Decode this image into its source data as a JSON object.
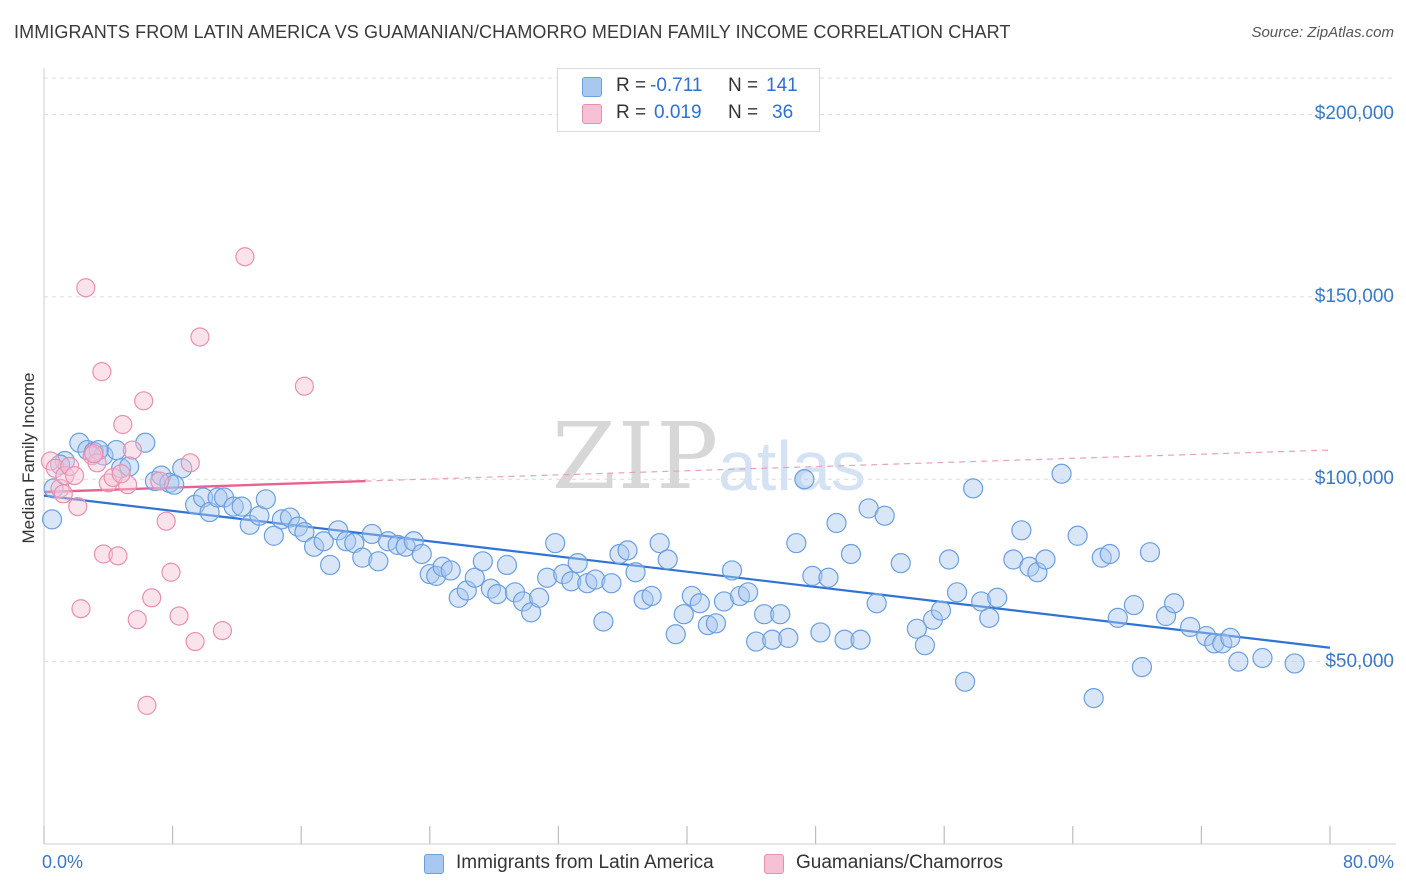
{
  "title": "IMMIGRANTS FROM LATIN AMERICA VS GUAMANIAN/CHAMORRO MEDIAN FAMILY INCOME CORRELATION CHART",
  "source": "Source: ZipAtlas.com",
  "watermark": {
    "zip": "ZIP",
    "atlas": "atlas"
  },
  "stats": [
    {
      "r_label": "R = ",
      "r_value": "-0.711",
      "n_label": "N = ",
      "n_value": "141",
      "color": "#a9c8f0",
      "border": "#6b9fe0"
    },
    {
      "r_label": "R = ",
      "r_value": "0.019",
      "n_label": "N = ",
      "n_value": "36",
      "color": "#f6c1d4",
      "border": "#e890ae"
    }
  ],
  "legend": [
    {
      "label": "Immigrants from Latin America",
      "color": "#a9c8f0",
      "border": "#6b9fe0"
    },
    {
      "label": "Guamanians/Chamorros",
      "color": "#f6c1d4",
      "border": "#e890ae"
    }
  ],
  "chart_data": {
    "type": "scatter",
    "title": "IMMIGRANTS FROM LATIN AMERICA VS GUAMANIAN/CHAMORRO MEDIAN FAMILY INCOME CORRELATION CHART",
    "xlabel": "",
    "ylabel": "Median Family Income",
    "xlim": [
      0,
      80
    ],
    "ylim": [
      0,
      210000
    ],
    "x_tick_labels": [
      "0.0%",
      "80.0%"
    ],
    "y_ticks": [
      50000,
      100000,
      150000,
      200000
    ],
    "y_tick_labels": [
      "$50,000",
      "$100,000",
      "$150,000",
      "$200,000"
    ],
    "grid": "horizontal dashed",
    "legend_position": "bottom-center",
    "series": [
      {
        "name": "Immigrants from Latin America",
        "color": "#6b9fe0",
        "trend": {
          "x": [
            0,
            80
          ],
          "y": [
            95500,
            53800
          ],
          "style": "solid"
        },
        "points": [
          [
            0.5,
            89000
          ],
          [
            0.6,
            97500
          ],
          [
            1.3,
            105000
          ],
          [
            2.2,
            110000
          ],
          [
            2.7,
            108000
          ],
          [
            3.1,
            107500
          ],
          [
            3.7,
            106500
          ],
          [
            4.5,
            108000
          ],
          [
            4.8,
            103000
          ],
          [
            6.3,
            110000
          ],
          [
            6.9,
            99500
          ],
          [
            7.3,
            101000
          ],
          [
            7.8,
            99000
          ],
          [
            8.6,
            103000
          ],
          [
            9.4,
            93000
          ],
          [
            9.9,
            95000
          ],
          [
            10.3,
            91000
          ],
          [
            10.8,
            95000
          ],
          [
            11.2,
            95000
          ],
          [
            11.8,
            92500
          ],
          [
            12.3,
            92500
          ],
          [
            12.8,
            87500
          ],
          [
            13.4,
            90000
          ],
          [
            13.8,
            94500
          ],
          [
            14.3,
            84500
          ],
          [
            14.8,
            89000
          ],
          [
            15.3,
            89500
          ],
          [
            15.8,
            87000
          ],
          [
            16.2,
            85500
          ],
          [
            16.8,
            81500
          ],
          [
            17.4,
            83000
          ],
          [
            17.8,
            76500
          ],
          [
            18.3,
            86000
          ],
          [
            18.8,
            83000
          ],
          [
            19.3,
            82500
          ],
          [
            19.8,
            78500
          ],
          [
            20.4,
            85000
          ],
          [
            20.8,
            77500
          ],
          [
            21.4,
            83000
          ],
          [
            22.0,
            82000
          ],
          [
            22.5,
            81500
          ],
          [
            23.0,
            83000
          ],
          [
            23.5,
            79500
          ],
          [
            24.0,
            74000
          ],
          [
            24.4,
            73500
          ],
          [
            24.8,
            76000
          ],
          [
            25.3,
            75000
          ],
          [
            25.8,
            67500
          ],
          [
            26.3,
            69500
          ],
          [
            26.8,
            73000
          ],
          [
            27.3,
            77500
          ],
          [
            27.8,
            70000
          ],
          [
            28.2,
            68500
          ],
          [
            28.8,
            76500
          ],
          [
            29.3,
            69000
          ],
          [
            29.8,
            66500
          ],
          [
            30.3,
            63500
          ],
          [
            30.8,
            67500
          ],
          [
            31.3,
            73000
          ],
          [
            31.8,
            82500
          ],
          [
            32.3,
            74000
          ],
          [
            32.8,
            72000
          ],
          [
            33.2,
            77000
          ],
          [
            33.8,
            71500
          ],
          [
            34.3,
            72500
          ],
          [
            34.8,
            61000
          ],
          [
            35.3,
            71500
          ],
          [
            35.8,
            79500
          ],
          [
            36.3,
            80500
          ],
          [
            36.8,
            74500
          ],
          [
            37.3,
            67000
          ],
          [
            37.8,
            68000
          ],
          [
            38.3,
            82500
          ],
          [
            38.8,
            78000
          ],
          [
            39.3,
            57500
          ],
          [
            39.8,
            63000
          ],
          [
            40.3,
            68000
          ],
          [
            40.8,
            66000
          ],
          [
            41.3,
            60000
          ],
          [
            41.8,
            60500
          ],
          [
            42.3,
            66500
          ],
          [
            42.8,
            75000
          ],
          [
            43.3,
            68000
          ],
          [
            43.8,
            69000
          ],
          [
            44.3,
            55500
          ],
          [
            44.8,
            63000
          ],
          [
            45.3,
            56000
          ],
          [
            45.8,
            63000
          ],
          [
            46.3,
            56500
          ],
          [
            46.8,
            82500
          ],
          [
            47.3,
            100000
          ],
          [
            47.8,
            73500
          ],
          [
            48.3,
            58000
          ],
          [
            48.8,
            73000
          ],
          [
            49.3,
            88000
          ],
          [
            49.8,
            56000
          ],
          [
            50.2,
            79500
          ],
          [
            50.8,
            56000
          ],
          [
            51.3,
            92000
          ],
          [
            51.8,
            66000
          ],
          [
            52.3,
            90000
          ],
          [
            53.3,
            77000
          ],
          [
            54.3,
            59000
          ],
          [
            54.8,
            54500
          ],
          [
            55.3,
            61500
          ],
          [
            55.8,
            64000
          ],
          [
            56.3,
            78000
          ],
          [
            56.8,
            69000
          ],
          [
            57.3,
            44500
          ],
          [
            57.8,
            97500
          ],
          [
            58.3,
            66500
          ],
          [
            58.8,
            62000
          ],
          [
            59.3,
            67500
          ],
          [
            60.3,
            78000
          ],
          [
            60.8,
            86000
          ],
          [
            61.3,
            76000
          ],
          [
            61.8,
            74500
          ],
          [
            62.3,
            78000
          ],
          [
            63.3,
            101500
          ],
          [
            64.3,
            84500
          ],
          [
            65.3,
            40000
          ],
          [
            65.8,
            78500
          ],
          [
            66.3,
            79500
          ],
          [
            66.8,
            62000
          ],
          [
            67.8,
            65500
          ],
          [
            68.3,
            48500
          ],
          [
            68.8,
            80000
          ],
          [
            69.8,
            62500
          ],
          [
            70.3,
            66000
          ],
          [
            71.3,
            59500
          ],
          [
            72.3,
            57000
          ],
          [
            72.8,
            55000
          ],
          [
            73.3,
            55000
          ],
          [
            73.8,
            56500
          ],
          [
            74.3,
            50000
          ],
          [
            75.8,
            51000
          ],
          [
            77.8,
            49500
          ],
          [
            1.0,
            104000
          ],
          [
            3.4,
            108000
          ],
          [
            5.3,
            103500
          ],
          [
            8.1,
            98500
          ]
        ]
      },
      {
        "name": "Guamanians/Chamorros",
        "color": "#e890ae",
        "trend": {
          "x": [
            0,
            20
          ],
          "y": [
            96500,
            99500
          ],
          "style": "solid",
          "extended_to": [
            80,
            108000
          ],
          "extended_style": "dashed"
        },
        "points": [
          [
            0.4,
            105000
          ],
          [
            0.7,
            103000
          ],
          [
            1.0,
            97500
          ],
          [
            1.3,
            101000
          ],
          [
            1.6,
            103500
          ],
          [
            1.9,
            101000
          ],
          [
            2.1,
            92500
          ],
          [
            2.6,
            152500
          ],
          [
            3.0,
            106500
          ],
          [
            3.3,
            104500
          ],
          [
            3.6,
            129500
          ],
          [
            3.7,
            79500
          ],
          [
            4.0,
            99000
          ],
          [
            4.3,
            100500
          ],
          [
            4.6,
            79000
          ],
          [
            4.9,
            115000
          ],
          [
            5.2,
            98500
          ],
          [
            5.5,
            108000
          ],
          [
            5.8,
            61500
          ],
          [
            6.2,
            121500
          ],
          [
            6.7,
            67500
          ],
          [
            7.2,
            99500
          ],
          [
            7.6,
            88500
          ],
          [
            7.9,
            74500
          ],
          [
            8.4,
            62500
          ],
          [
            9.1,
            104500
          ],
          [
            9.7,
            139000
          ],
          [
            11.1,
            58500
          ],
          [
            12.5,
            161000
          ],
          [
            16.2,
            125500
          ],
          [
            2.3,
            64500
          ],
          [
            6.4,
            38000
          ],
          [
            9.4,
            55500
          ],
          [
            4.8,
            101500
          ],
          [
            1.2,
            96000
          ],
          [
            3.1,
            107000
          ]
        ]
      }
    ]
  }
}
